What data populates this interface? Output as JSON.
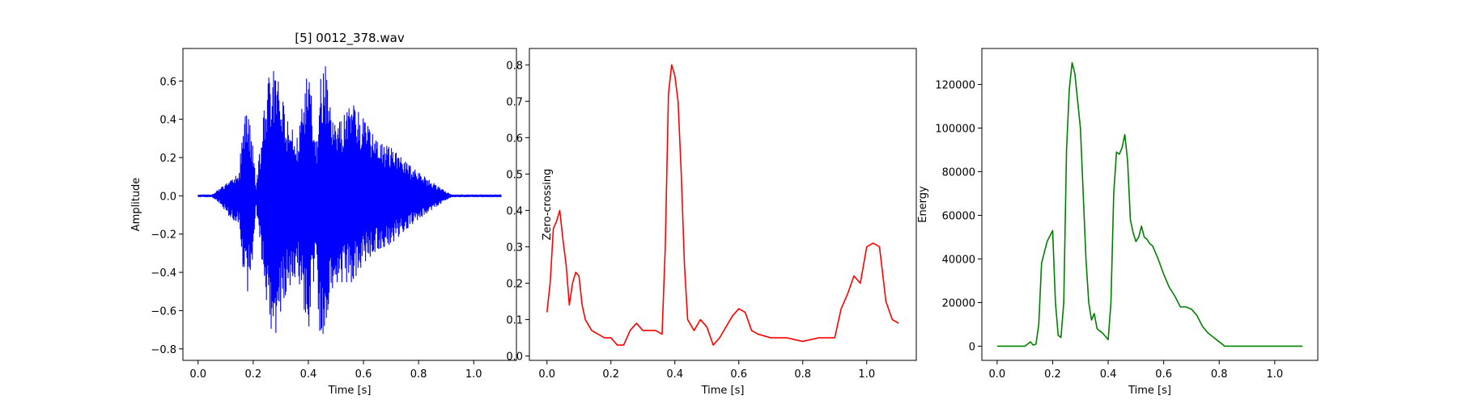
{
  "chart_data": [
    {
      "type": "line",
      "title": "[5] 0012_378.wav",
      "xlabel": "Time [s]",
      "ylabel": "Amplitude",
      "xlim": [
        -0.055,
        1.155
      ],
      "ylim": [
        -0.86,
        0.77
      ],
      "xticks": [
        {
          "v": 0.0,
          "label": "0.0"
        },
        {
          "v": 0.2,
          "label": "0.2"
        },
        {
          "v": 0.4,
          "label": "0.4"
        },
        {
          "v": 0.6,
          "label": "0.6"
        },
        {
          "v": 0.8,
          "label": "0.8"
        },
        {
          "v": 1.0,
          "label": "1.0"
        }
      ],
      "yticks": [
        {
          "v": -0.8,
          "label": "−0.8"
        },
        {
          "v": -0.6,
          "label": "−0.6"
        },
        {
          "v": -0.4,
          "label": "−0.4"
        },
        {
          "v": -0.2,
          "label": "−0.2"
        },
        {
          "v": 0.0,
          "label": "0.0"
        },
        {
          "v": 0.2,
          "label": "0.2"
        },
        {
          "v": 0.4,
          "label": "0.4"
        },
        {
          "v": 0.6,
          "label": "0.6"
        }
      ],
      "color": "#0000ff",
      "envelope": {
        "x": [
          0.0,
          0.05,
          0.08,
          0.1,
          0.12,
          0.15,
          0.16,
          0.18,
          0.2,
          0.21,
          0.24,
          0.26,
          0.28,
          0.3,
          0.32,
          0.36,
          0.4,
          0.43,
          0.44,
          0.46,
          0.48,
          0.5,
          0.52,
          0.56,
          0.6,
          0.65,
          0.7,
          0.75,
          0.8,
          0.85,
          0.9,
          0.92,
          1.0,
          1.1
        ],
        "upper": [
          0.005,
          0.005,
          0.04,
          0.06,
          0.08,
          0.12,
          0.37,
          0.45,
          0.25,
          0.05,
          0.45,
          0.65,
          0.65,
          0.55,
          0.4,
          0.3,
          0.67,
          0.25,
          0.58,
          0.7,
          0.45,
          0.35,
          0.4,
          0.48,
          0.4,
          0.28,
          0.25,
          0.18,
          0.12,
          0.07,
          0.02,
          0.005,
          0.005,
          0.005
        ],
        "lower": [
          -0.005,
          -0.005,
          -0.04,
          -0.08,
          -0.12,
          -0.14,
          -0.35,
          -0.5,
          -0.3,
          -0.05,
          -0.45,
          -0.68,
          -0.73,
          -0.6,
          -0.5,
          -0.4,
          -0.71,
          -0.3,
          -0.76,
          -0.7,
          -0.5,
          -0.45,
          -0.45,
          -0.45,
          -0.35,
          -0.28,
          -0.25,
          -0.18,
          -0.12,
          -0.07,
          -0.02,
          -0.005,
          -0.005,
          -0.005
        ]
      }
    },
    {
      "type": "line",
      "title": "",
      "xlabel": "Time [s]",
      "ylabel": "Zero-crossing",
      "xlim": [
        -0.055,
        1.155
      ],
      "ylim": [
        -0.012,
        0.845
      ],
      "xticks": [
        {
          "v": 0.0,
          "label": "0.0"
        },
        {
          "v": 0.2,
          "label": "0.2"
        },
        {
          "v": 0.4,
          "label": "0.4"
        },
        {
          "v": 0.6,
          "label": "0.6"
        },
        {
          "v": 0.8,
          "label": "0.8"
        },
        {
          "v": 1.0,
          "label": "1.0"
        }
      ],
      "yticks": [
        {
          "v": 0.0,
          "label": "0.0"
        },
        {
          "v": 0.1,
          "label": "0.1"
        },
        {
          "v": 0.2,
          "label": "0.2"
        },
        {
          "v": 0.3,
          "label": "0.3"
        },
        {
          "v": 0.4,
          "label": "0.4"
        },
        {
          "v": 0.5,
          "label": "0.5"
        },
        {
          "v": 0.6,
          "label": "0.6"
        },
        {
          "v": 0.7,
          "label": "0.7"
        },
        {
          "v": 0.8,
          "label": "0.8"
        }
      ],
      "color": "#ff0000",
      "x": [
        0.0,
        0.01,
        0.02,
        0.03,
        0.04,
        0.05,
        0.06,
        0.07,
        0.08,
        0.09,
        0.1,
        0.11,
        0.12,
        0.14,
        0.16,
        0.18,
        0.2,
        0.22,
        0.24,
        0.26,
        0.28,
        0.3,
        0.32,
        0.34,
        0.36,
        0.37,
        0.38,
        0.39,
        0.4,
        0.41,
        0.42,
        0.43,
        0.44,
        0.46,
        0.48,
        0.5,
        0.52,
        0.54,
        0.56,
        0.58,
        0.6,
        0.62,
        0.64,
        0.66,
        0.7,
        0.75,
        0.8,
        0.85,
        0.9,
        0.92,
        0.94,
        0.96,
        0.98,
        1.0,
        1.02,
        1.04,
        1.06,
        1.08,
        1.1
      ],
      "y": [
        0.12,
        0.2,
        0.35,
        0.37,
        0.4,
        0.32,
        0.25,
        0.14,
        0.2,
        0.23,
        0.22,
        0.14,
        0.1,
        0.07,
        0.06,
        0.05,
        0.05,
        0.03,
        0.03,
        0.07,
        0.09,
        0.07,
        0.07,
        0.07,
        0.06,
        0.3,
        0.72,
        0.8,
        0.77,
        0.7,
        0.5,
        0.25,
        0.1,
        0.07,
        0.1,
        0.08,
        0.03,
        0.05,
        0.08,
        0.11,
        0.13,
        0.12,
        0.07,
        0.06,
        0.05,
        0.05,
        0.04,
        0.05,
        0.05,
        0.13,
        0.17,
        0.22,
        0.2,
        0.3,
        0.31,
        0.3,
        0.15,
        0.1,
        0.09
      ]
    },
    {
      "type": "line",
      "title": "",
      "xlabel": "Time [s]",
      "ylabel": "Energy",
      "xlim": [
        -0.055,
        1.155
      ],
      "ylim": [
        -6500,
        136500
      ],
      "xticks": [
        {
          "v": 0.0,
          "label": "0.0"
        },
        {
          "v": 0.2,
          "label": "0.2"
        },
        {
          "v": 0.4,
          "label": "0.4"
        },
        {
          "v": 0.6,
          "label": "0.6"
        },
        {
          "v": 0.8,
          "label": "0.8"
        },
        {
          "v": 1.0,
          "label": "1.0"
        }
      ],
      "yticks": [
        {
          "v": 0,
          "label": "0"
        },
        {
          "v": 20000,
          "label": "20000"
        },
        {
          "v": 40000,
          "label": "40000"
        },
        {
          "v": 60000,
          "label": "60000"
        },
        {
          "v": 80000,
          "label": "80000"
        },
        {
          "v": 100000,
          "label": "100000"
        },
        {
          "v": 120000,
          "label": "120000"
        }
      ],
      "color": "#008000",
      "x": [
        0.0,
        0.1,
        0.12,
        0.13,
        0.14,
        0.15,
        0.16,
        0.18,
        0.2,
        0.21,
        0.22,
        0.23,
        0.24,
        0.25,
        0.26,
        0.27,
        0.28,
        0.3,
        0.31,
        0.32,
        0.33,
        0.34,
        0.35,
        0.36,
        0.37,
        0.38,
        0.4,
        0.41,
        0.42,
        0.43,
        0.44,
        0.45,
        0.46,
        0.47,
        0.48,
        0.49,
        0.5,
        0.51,
        0.52,
        0.53,
        0.54,
        0.55,
        0.56,
        0.58,
        0.6,
        0.62,
        0.64,
        0.66,
        0.68,
        0.7,
        0.72,
        0.74,
        0.76,
        0.78,
        0.8,
        0.82,
        0.84,
        0.86,
        0.88,
        0.9,
        0.92,
        1.0,
        1.1
      ],
      "y": [
        0,
        0,
        2000,
        500,
        1000,
        10000,
        38000,
        48000,
        53000,
        20000,
        5000,
        4000,
        20000,
        90000,
        118000,
        130000,
        125000,
        100000,
        70000,
        40000,
        20000,
        12000,
        15000,
        8000,
        7000,
        6000,
        3000,
        20000,
        70000,
        89000,
        88000,
        91000,
        97000,
        85000,
        58000,
        52000,
        48000,
        50000,
        55000,
        50000,
        49000,
        47000,
        46000,
        40000,
        33000,
        27000,
        23000,
        18000,
        18000,
        17000,
        14000,
        9000,
        6000,
        4000,
        2000,
        0,
        0,
        0,
        0,
        0,
        0,
        0,
        0
      ]
    }
  ]
}
